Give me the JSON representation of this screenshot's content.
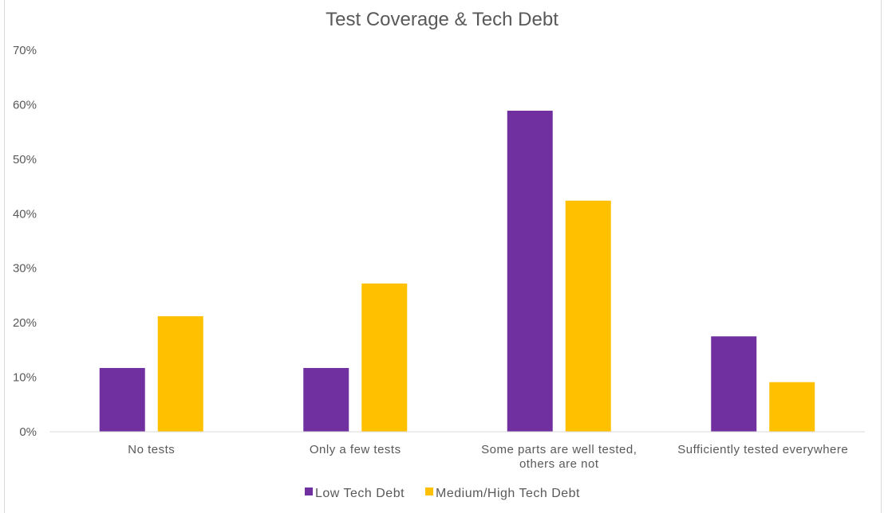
{
  "chart_data": {
    "type": "bar",
    "title": "Test Coverage & Tech Debt",
    "xlabel": "",
    "ylabel": "",
    "ylim": [
      0,
      70
    ],
    "yticks": [
      "0%",
      "10%",
      "20%",
      "30%",
      "40%",
      "50%",
      "60%",
      "70%"
    ],
    "grid": false,
    "legend_position": "bottom",
    "categories": [
      [
        "No tests"
      ],
      [
        "Only a few tests"
      ],
      [
        "Some parts are well tested,",
        "others are not"
      ],
      [
        "Sufficiently tested everywhere"
      ]
    ],
    "series": [
      {
        "name": "Low Tech Debt",
        "color": "#7030a0",
        "values": [
          11.7,
          11.7,
          58.9,
          17.5
        ]
      },
      {
        "name": "Medium/High Tech Debt",
        "color": "#ffc000",
        "values": [
          21.2,
          27.2,
          42.4,
          9.1
        ]
      }
    ]
  }
}
